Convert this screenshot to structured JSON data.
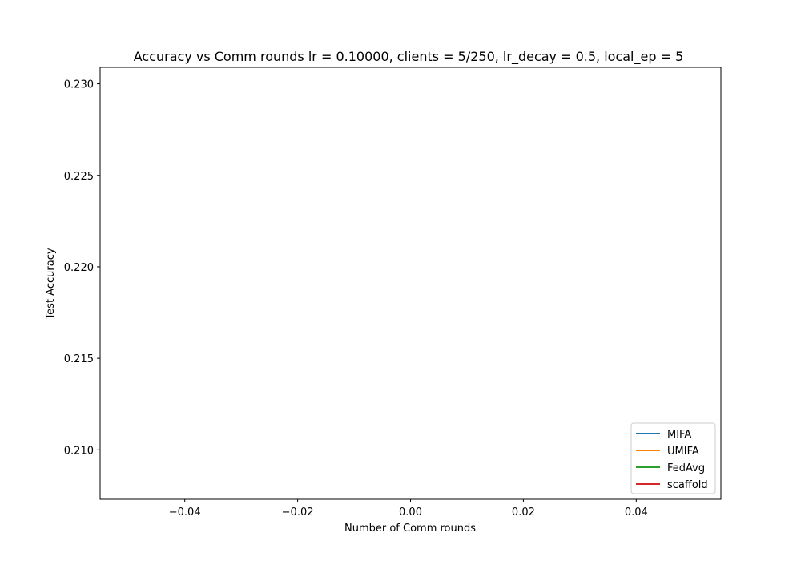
{
  "chart_data": {
    "type": "line",
    "title": "Accuracy vs Comm rounds lr = 0.10000, clients = 5/250, lr_decay = 0.5, local_ep = 5",
    "xlabel": "Number of Comm rounds",
    "ylabel": "Test Accuracy",
    "xlim": [
      -0.055,
      0.055
    ],
    "ylim": [
      0.2073,
      0.2309
    ],
    "xticks": [
      -0.04,
      -0.02,
      0.0,
      0.02,
      0.04
    ],
    "xtick_labels": [
      "−0.04",
      "−0.02",
      "0.00",
      "0.02",
      "0.04"
    ],
    "yticks": [
      0.21,
      0.215,
      0.22,
      0.225,
      0.23
    ],
    "ytick_labels": [
      "0.210",
      "0.215",
      "0.220",
      "0.225",
      "0.230"
    ],
    "grid": false,
    "legend_position": "lower-right",
    "series": [
      {
        "name": "MIFA",
        "color": "#1f77b4",
        "x": [],
        "y": []
      },
      {
        "name": "UMIFA",
        "color": "#ff7f0e",
        "x": [],
        "y": []
      },
      {
        "name": "FedAvg",
        "color": "#2ca02c",
        "x": [],
        "y": []
      },
      {
        "name": "scaffold",
        "color": "#d62728",
        "x": [],
        "y": []
      }
    ]
  }
}
